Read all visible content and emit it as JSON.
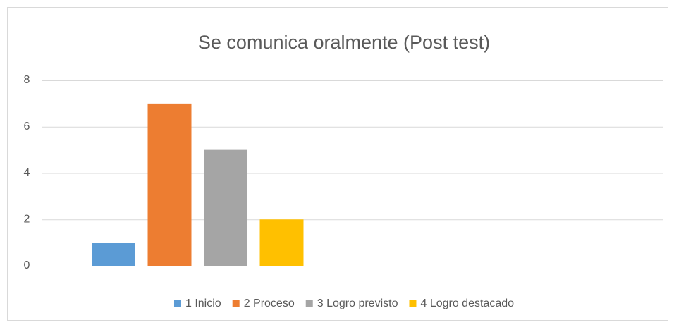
{
  "chart_data": {
    "type": "bar",
    "title": "Se comunica oralmente (Post test)",
    "categories": [
      null
    ],
    "series": [
      {
        "name": "1 Inicio",
        "color": "#5b9bd5",
        "values": [
          1
        ]
      },
      {
        "name": "2 Proceso",
        "color": "#ed7d31",
        "values": [
          7
        ]
      },
      {
        "name": "3 Logro previsto",
        "color": "#a5a5a5",
        "values": [
          5
        ]
      },
      {
        "name": "4 Logro destacado",
        "color": "#ffc000",
        "values": [
          2
        ]
      }
    ],
    "ylim": [
      0,
      8
    ],
    "yticks": [
      0,
      2,
      4,
      6,
      8
    ],
    "grid": true,
    "legend": "bottom"
  }
}
